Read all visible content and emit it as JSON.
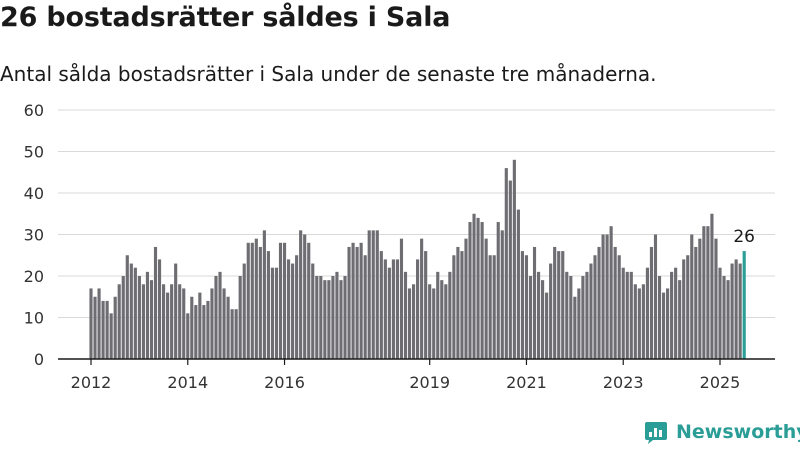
{
  "header": {
    "title": "26 bostadsrätter såldes i Sala",
    "subtitle": "Antal sålda bostadsrätter i Sala under de senaste tre månaderna."
  },
  "brand": {
    "name": "Newsworthy",
    "icon": "newsworthy-logo-icon",
    "color": "#2a9d96"
  },
  "chart_data": {
    "type": "bar",
    "title": "26 bostadsrätter såldes i Sala",
    "subtitle": "Antal sålda bostadsrätter i Sala under de senaste tre månaderna.",
    "ylim": [
      0,
      60
    ],
    "y_ticks": [
      0,
      10,
      20,
      30,
      40,
      50,
      60
    ],
    "x_range": [
      2011.5,
      2026.0
    ],
    "x_tick_labels": [
      "2012",
      "2014",
      "2016",
      "2019",
      "2021",
      "2023",
      "2025"
    ],
    "x_tick_positions": [
      2012,
      2014,
      2016,
      2019,
      2021,
      2023,
      2025
    ],
    "grid": true,
    "bar_color": "#6d6d72",
    "highlight_color": "#2a9d96",
    "highlight_label": "26",
    "series": [
      {
        "x_start": 2012.0,
        "x_step": 0.0833333,
        "values": [
          17,
          15,
          17,
          14,
          14,
          11,
          15,
          18,
          20,
          25,
          23,
          22,
          20,
          18,
          21,
          19,
          27,
          24,
          18,
          16,
          18,
          23,
          18,
          17,
          11,
          15,
          13,
          16,
          13,
          14,
          17,
          20,
          21,
          17,
          15,
          12,
          12,
          20,
          23,
          28,
          28,
          29,
          27,
          31,
          26,
          22,
          22,
          28,
          28,
          24,
          23,
          25,
          31,
          30,
          28,
          23,
          20,
          20,
          19,
          19,
          20,
          21,
          19,
          20,
          27,
          28,
          27,
          28,
          25,
          31,
          31,
          31,
          26,
          24,
          22,
          24,
          24,
          29,
          21,
          17,
          18,
          24,
          29,
          26,
          18,
          17,
          21,
          19,
          18,
          21,
          25,
          27,
          26,
          29,
          33,
          35,
          34,
          33,
          29,
          25,
          25,
          33,
          31,
          46,
          43,
          48,
          36,
          26,
          25,
          20,
          27,
          21,
          19,
          16,
          23,
          27,
          26,
          26,
          21,
          20,
          15,
          17,
          20,
          21,
          23,
          25,
          27,
          30,
          30,
          32,
          27,
          25,
          22,
          21,
          21,
          18,
          17,
          18,
          22,
          27,
          30,
          20,
          16,
          17,
          21,
          22,
          19,
          24,
          25,
          30,
          27,
          29,
          32,
          32,
          35,
          29,
          22,
          20,
          19,
          23,
          24,
          23,
          26
        ]
      }
    ]
  }
}
